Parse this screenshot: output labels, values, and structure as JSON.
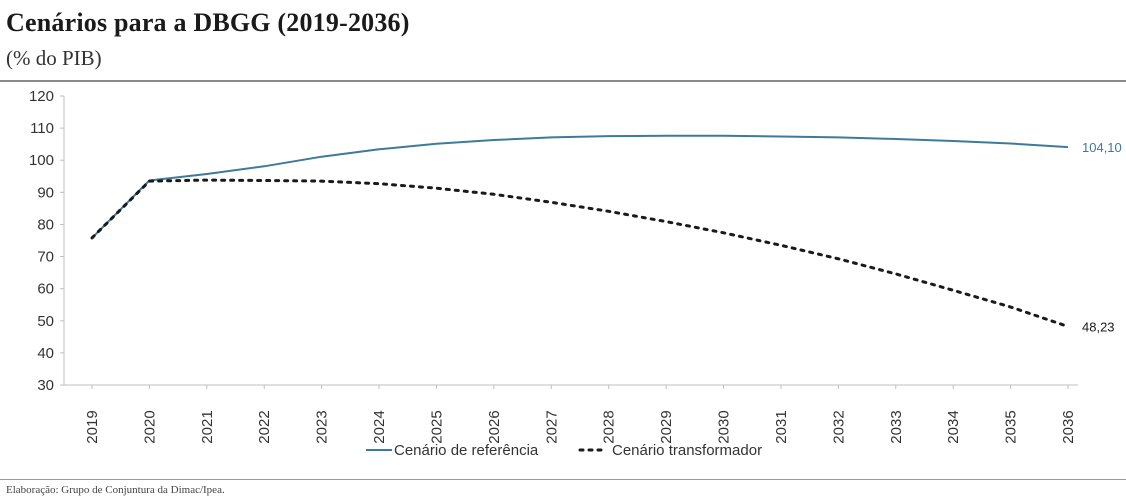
{
  "header": {
    "title": "Cenários para a DBGG  (2019-2036)",
    "subtitle": "(% do PIB)"
  },
  "footer": {
    "source": "Elaboração: Grupo de Conjuntura da Dimac/Ipea."
  },
  "colors": {
    "reference": "#3e7a99",
    "transform": "#1a1a1a",
    "axis": "#bfbfbf",
    "text": "#333333"
  },
  "chart_data": {
    "type": "line",
    "title": "Cenários para a DBGG  (2019-2036)",
    "subtitle": "(% do PIB)",
    "xlabel": "",
    "ylabel": "",
    "x": [
      "2019",
      "2020",
      "2021",
      "2022",
      "2023",
      "2024",
      "2025",
      "2026",
      "2027",
      "2028",
      "2029",
      "2030",
      "2031",
      "2032",
      "2033",
      "2034",
      "2035",
      "2036"
    ],
    "yticks": [
      "30",
      "40",
      "50",
      "60",
      "70",
      "80",
      "90",
      "100",
      "110",
      "120"
    ],
    "ylim": [
      30,
      120
    ],
    "grid": false,
    "legend_position": "bottom",
    "series": [
      {
        "name": "Cenário de referência",
        "style": "solid",
        "values": [
          75.8,
          93.7,
          95.7,
          98.1,
          101.1,
          103.4,
          105.1,
          106.3,
          107.1,
          107.5,
          107.6,
          107.6,
          107.4,
          107.1,
          106.6,
          106.0,
          105.2,
          104.1
        ],
        "end_label": "104,10"
      },
      {
        "name": "Cenário transformador",
        "style": "dotted",
        "values": [
          75.8,
          93.5,
          93.8,
          93.7,
          93.5,
          92.7,
          91.3,
          89.4,
          86.9,
          84.1,
          80.9,
          77.4,
          73.5,
          69.3,
          64.6,
          59.5,
          54.3,
          48.23
        ],
        "end_label": "48,23"
      }
    ]
  }
}
